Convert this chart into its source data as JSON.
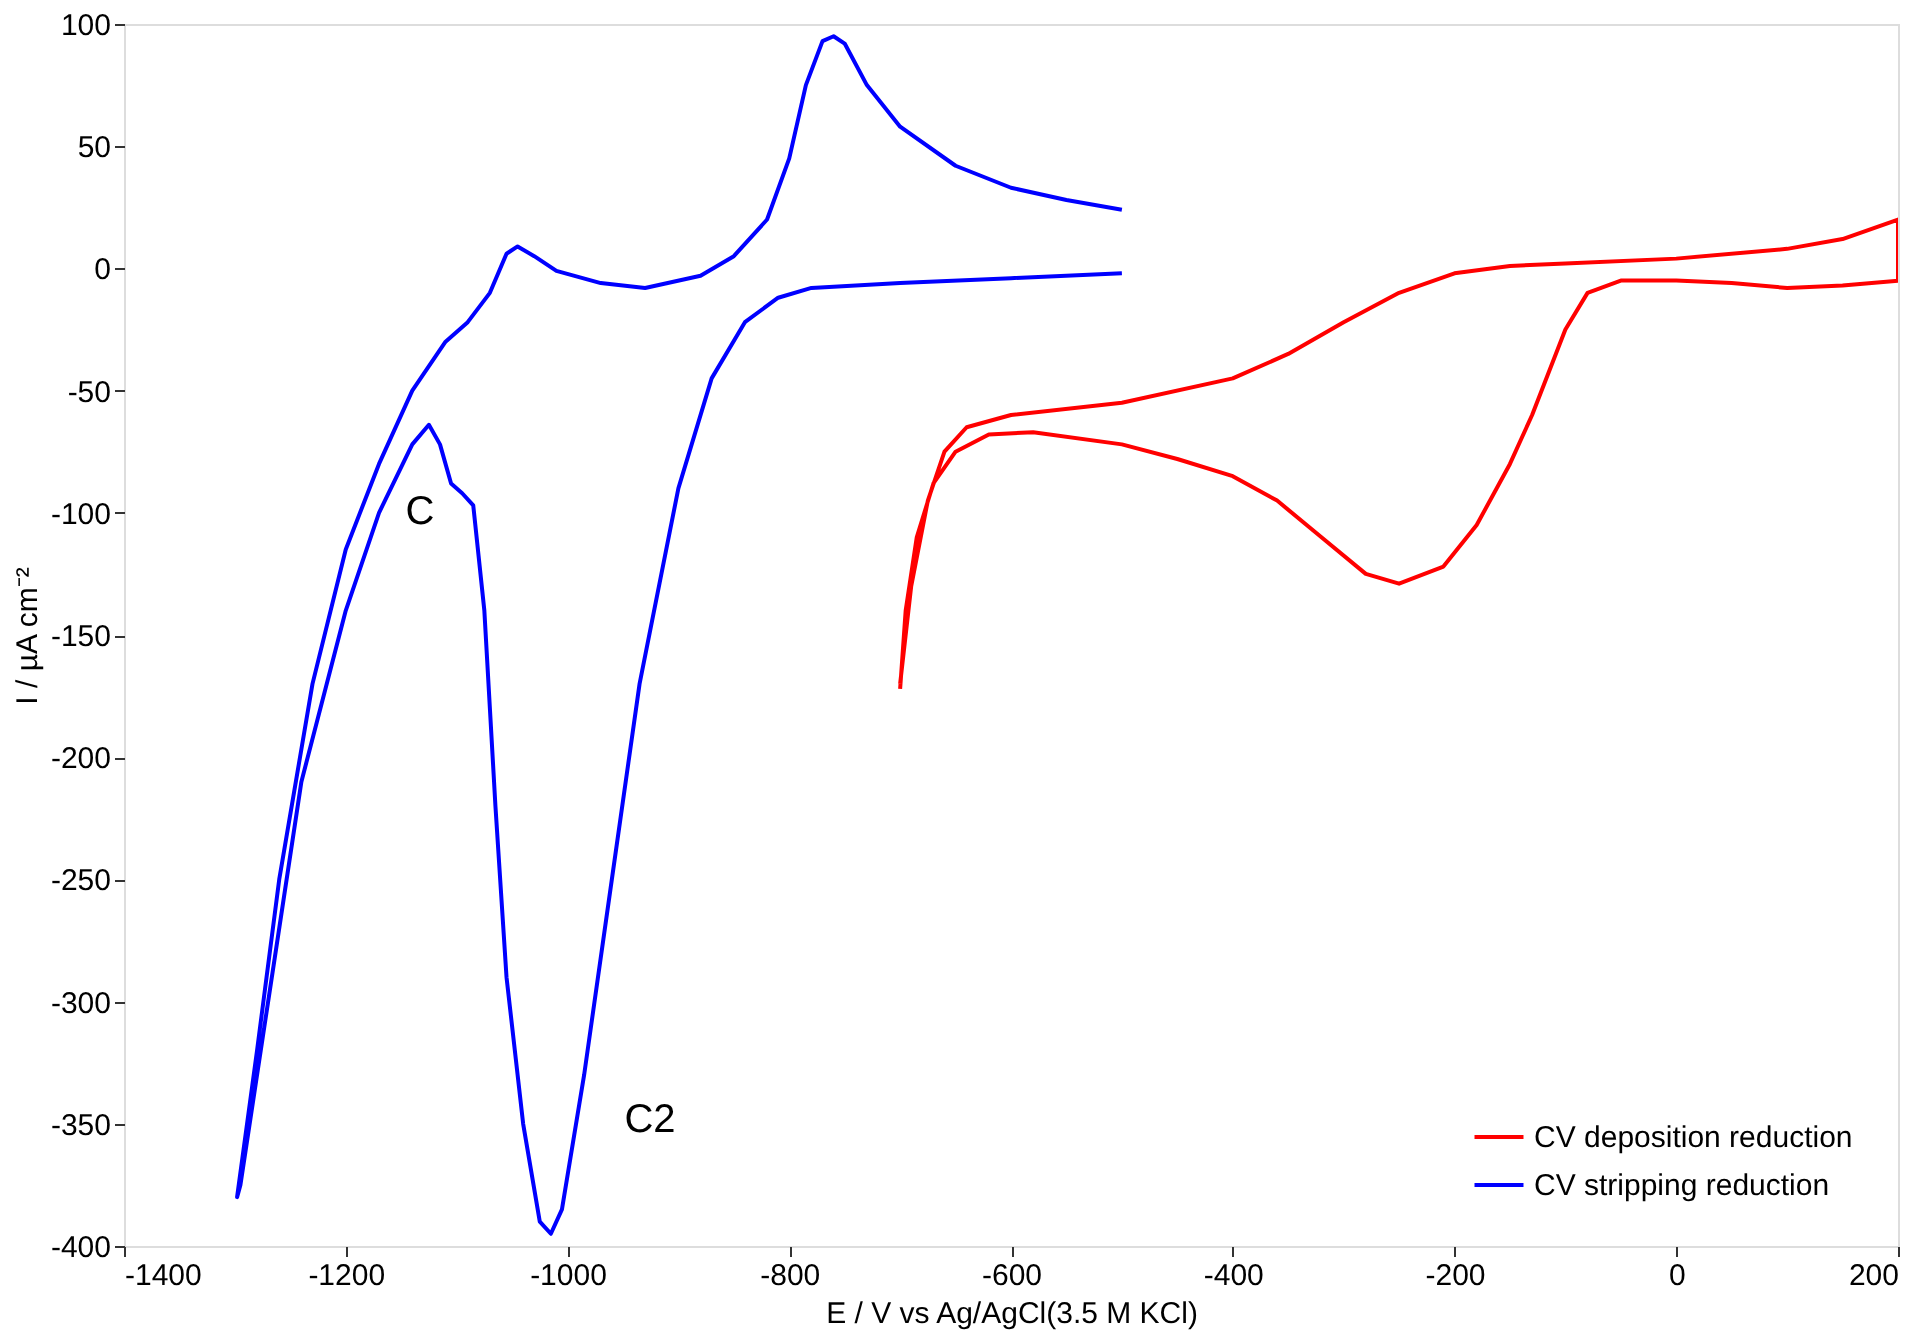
{
  "chart_data": {
    "type": "line",
    "xlabel": "E / V vs Ag/AgCl(3.5 M KCl)",
    "ylabel": "I / µA cm⁻²",
    "xlim": [
      -1400,
      200
    ],
    "xticks": [
      -1400,
      -1200,
      -1000,
      -800,
      -600,
      -400,
      -200,
      0,
      200
    ],
    "ylim": [
      -400,
      100
    ],
    "yticks": [
      -400,
      -350,
      -300,
      -250,
      -200,
      -150,
      -100,
      -50,
      0,
      50,
      100
    ],
    "grid": false,
    "legend": "bottom right",
    "marker": "none",
    "line_style": "solid",
    "annotations": [
      "C",
      "C2"
    ],
    "series": [
      {
        "name": "CV deposition reduction",
        "color": "#ff0000",
        "x": [
          -700,
          -690,
          -675,
          -660,
          -640,
          -600,
          -500,
          -400,
          -350,
          -300,
          -250,
          -200,
          -150,
          -100,
          0,
          100,
          150,
          200,
          200,
          150,
          100,
          50,
          0,
          -50,
          -80,
          -100,
          -130,
          -150,
          -180,
          -210,
          -250,
          -280,
          -320,
          -360,
          -400,
          -450,
          -500,
          -580,
          -620,
          -650,
          -670,
          -685,
          -695,
          -700
        ],
        "values": [
          -170,
          -130,
          -95,
          -75,
          -65,
          -60,
          -55,
          -45,
          -35,
          -22,
          -10,
          -2,
          1,
          2,
          4,
          8,
          12,
          20,
          -5,
          -7,
          -8,
          -6,
          -5,
          -5,
          -10,
          -25,
          -60,
          -80,
          -105,
          -122,
          -129,
          -125,
          -110,
          -95,
          -85,
          -78,
          -72,
          -67,
          -68,
          -75,
          -88,
          -110,
          -140,
          -172
        ]
      },
      {
        "name": "CV stripping reduction",
        "color": "#0000ff",
        "x": [
          -500,
          -550,
          -600,
          -650,
          -700,
          -730,
          -750,
          -760,
          -770,
          -785,
          -800,
          -820,
          -850,
          -880,
          -930,
          -970,
          -1010,
          -1030,
          -1045,
          -1055,
          -1070,
          -1090,
          -1110,
          -1140,
          -1170,
          -1200,
          -1230,
          -1260,
          -1280,
          -1298,
          -1295,
          -1270,
          -1240,
          -1200,
          -1170,
          -1140,
          -1125,
          -1115,
          -1105,
          -1095,
          -1085,
          -1075,
          -1065,
          -1055,
          -1040,
          -1025,
          -1015,
          -1005,
          -985,
          -960,
          -935,
          -900,
          -870,
          -840,
          -810,
          -780,
          -700,
          -600,
          -500
        ],
        "values": [
          24,
          28,
          33,
          42,
          58,
          75,
          92,
          95,
          93,
          75,
          45,
          20,
          5,
          -3,
          -8,
          -6,
          -1,
          5,
          9,
          6,
          -10,
          -22,
          -30,
          -50,
          -80,
          -115,
          -170,
          -250,
          -320,
          -380,
          -375,
          -300,
          -210,
          -140,
          -100,
          -72,
          -64,
          -72,
          -88,
          -92,
          -97,
          -140,
          -220,
          -290,
          -350,
          -390,
          -395,
          -385,
          -330,
          -250,
          -170,
          -90,
          -45,
          -22,
          -12,
          -8,
          -6,
          -4,
          -2
        ]
      }
    ]
  }
}
